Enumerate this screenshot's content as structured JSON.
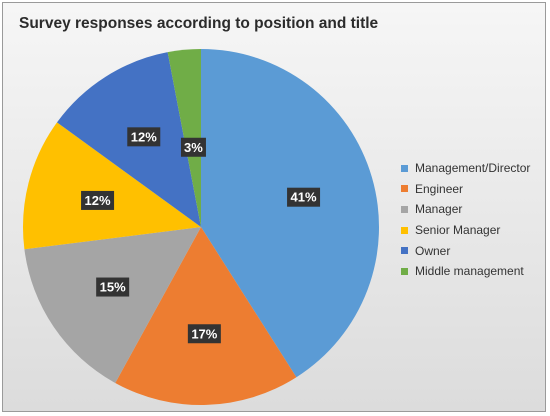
{
  "chart_data": {
    "type": "pie",
    "title": "Survey responses according to position and title",
    "categories": [
      "Management/Director",
      "Engineer",
      "Manager",
      "Senior Manager",
      "Owner",
      "Middle management"
    ],
    "values": [
      41,
      17,
      15,
      12,
      12,
      3
    ],
    "data_labels": [
      "41%",
      "17%",
      "15%",
      "12%",
      "12%",
      "3%"
    ],
    "colors": [
      "#5b9bd5",
      "#ed7d31",
      "#a5a5a5",
      "#ffc000",
      "#4472c4",
      "#70ad47"
    ],
    "unit": "%",
    "start_angle_deg": 0,
    "direction": "clockwise",
    "legend_position": "right"
  }
}
